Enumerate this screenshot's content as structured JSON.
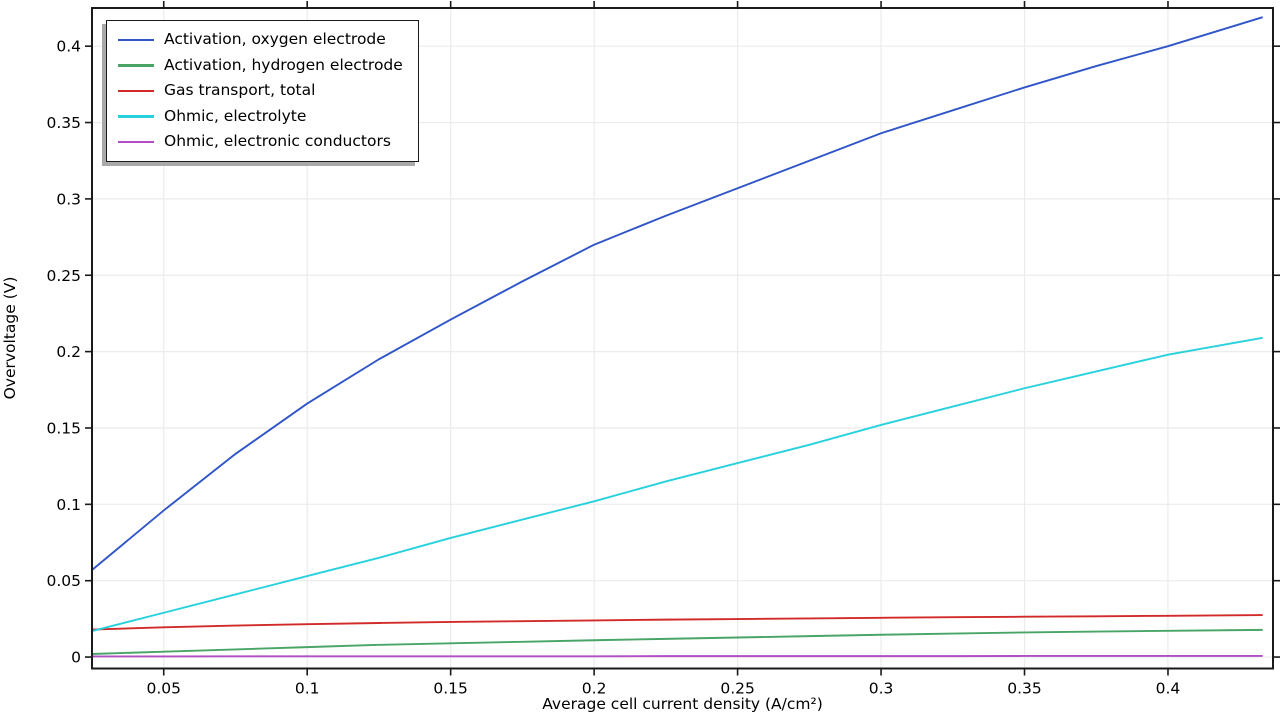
{
  "chart_data": {
    "type": "line",
    "title": "",
    "xlabel": "Average cell current density (A/cm²)",
    "ylabel": "Overvoltage (V)",
    "xlim": [
      0.025,
      0.4366
    ],
    "ylim": [
      -0.0075,
      0.425
    ],
    "x_ticks": [
      0.05,
      0.1,
      0.15,
      0.2,
      0.25,
      0.3,
      0.35,
      0.4
    ],
    "y_ticks": [
      0,
      0.05,
      0.1,
      0.15,
      0.2,
      0.25,
      0.3,
      0.35,
      0.4
    ],
    "grid": true,
    "legend_position": "top-left",
    "x": [
      0.025,
      0.05,
      0.075,
      0.1,
      0.125,
      0.15,
      0.175,
      0.2,
      0.225,
      0.25,
      0.275,
      0.3,
      0.325,
      0.35,
      0.375,
      0.4,
      0.433
    ],
    "series": [
      {
        "name": "Activation, oxygen electrode",
        "color": "#2f55c8",
        "values": [
          0.057,
          0.096,
          0.133,
          0.166,
          0.195,
          0.221,
          0.246,
          0.27,
          0.289,
          0.307,
          0.325,
          0.343,
          0.358,
          0.373,
          0.387,
          0.4,
          0.419
        ]
      },
      {
        "name": "Activation, hydrogen electrode",
        "color": "#48a567",
        "values": [
          0.002,
          0.0035,
          0.005,
          0.0065,
          0.008,
          0.009,
          0.01,
          0.011,
          0.0119,
          0.0128,
          0.0137,
          0.0146,
          0.0154,
          0.0161,
          0.0167,
          0.0172,
          0.0178
        ]
      },
      {
        "name": "Gas transport, total",
        "color": "#d12b29",
        "values": [
          0.018,
          0.0195,
          0.0206,
          0.0215,
          0.0223,
          0.023,
          0.0235,
          0.024,
          0.0245,
          0.0249,
          0.0253,
          0.0257,
          0.0261,
          0.0264,
          0.0267,
          0.027,
          0.0275
        ]
      },
      {
        "name": "Ohmic, electrolyte",
        "color": "#28d1de",
        "values": [
          0.017,
          0.029,
          0.041,
          0.053,
          0.065,
          0.078,
          0.09,
          0.102,
          0.115,
          0.127,
          0.139,
          0.152,
          0.164,
          0.176,
          0.187,
          0.198,
          0.209
        ]
      },
      {
        "name": "Ohmic, electronic conductors",
        "color": "#b04ec4",
        "values": [
          0.0004,
          0.0004,
          0.0005,
          0.0005,
          0.0005,
          0.0005,
          0.0005,
          0.0005,
          0.0006,
          0.0006,
          0.0006,
          0.0006,
          0.0006,
          0.0007,
          0.0007,
          0.0007,
          0.0007
        ]
      }
    ],
    "style": {
      "grid_color": "#ebebeb",
      "axis_color": "#1a1a1a",
      "tick_length": 7,
      "line_width": 1.9
    }
  }
}
